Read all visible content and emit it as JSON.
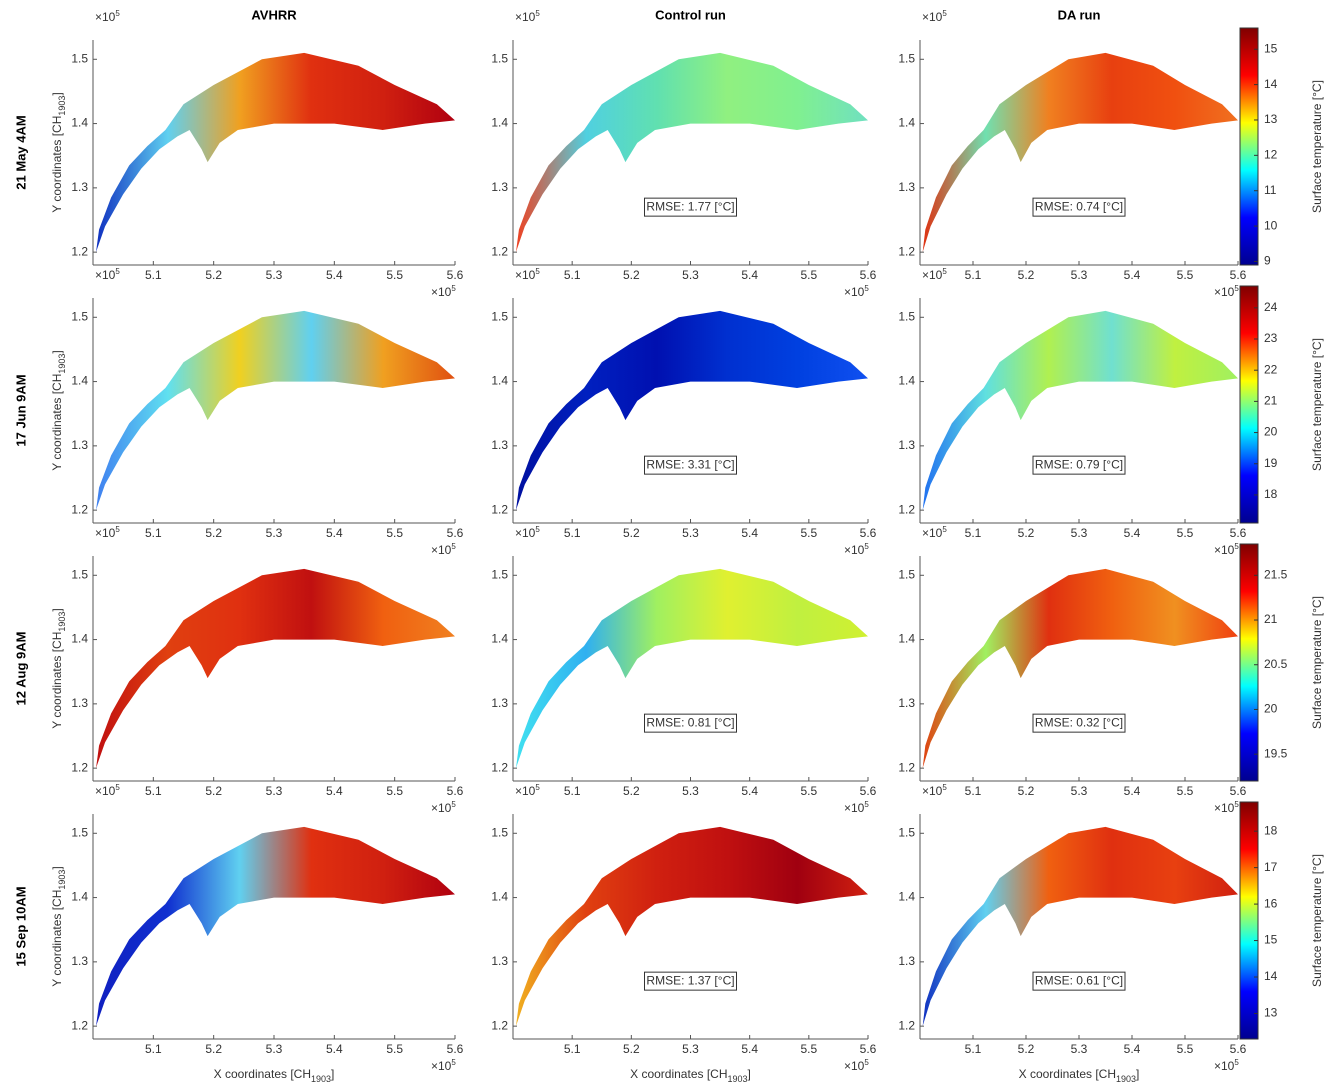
{
  "chart_data": {
    "type": "map-grid",
    "columns": [
      "AVHRR",
      "Control run",
      "DA run"
    ],
    "axes": {
      "xlabel": [
        "X coordinates [CH",
        "1903",
        "]"
      ],
      "ylabel": [
        "Y coordinates [CH",
        "1903",
        "]"
      ],
      "exponent": [
        "×10",
        "5"
      ],
      "xlim": [
        5.0,
        5.6
      ],
      "xticks": [
        5.1,
        5.2,
        5.3,
        5.4,
        5.5,
        5.6
      ],
      "ylim": [
        1.18,
        1.53
      ],
      "yticks": [
        1.2,
        1.3,
        1.4,
        1.5
      ]
    },
    "colormap": [
      "#00008f",
      "#0000ff",
      "#00ffff",
      "#ffff00",
      "#ff0000",
      "#800000"
    ],
    "rows": [
      {
        "label": "21 May 4AM",
        "colorbar": {
          "label": "Surface temperature [°C]",
          "lim": [
            8.9,
            15.6
          ],
          "ticks": [
            9,
            10,
            11,
            12,
            13,
            14,
            15
          ]
        },
        "panels": [
          {
            "colors": [
              "#1030c0",
              "#60d0f0",
              "#f0a020",
              "#e03010",
              "#d02010",
              "#b00010"
            ]
          },
          {
            "colors": [
              "#f04020",
              "#50d0e0",
              "#60e0b0",
              "#90f080",
              "#80f090",
              "#70e0c0"
            ],
            "rmse": "RMSE: 1.77 [°C]"
          },
          {
            "colors": [
              "#e03010",
              "#70e0b0",
              "#f08020",
              "#e84010",
              "#f05010",
              "#f07020"
            ],
            "rmse": "RMSE: 0.74 [°C]"
          }
        ]
      },
      {
        "label": "17 Jun 9AM",
        "colorbar": {
          "label": "Surface temperature [°C]",
          "lim": [
            17.1,
            24.7
          ],
          "ticks": [
            18,
            19,
            20,
            21,
            22,
            23,
            24
          ]
        },
        "panels": [
          {
            "colors": [
              "#4080f0",
              "#60e0f0",
              "#f0d020",
              "#60d0f0",
              "#f0a020",
              "#e05010"
            ]
          },
          {
            "colors": [
              "#0010a0",
              "#0020c0",
              "#0010b0",
              "#0030d0",
              "#0040e0",
              "#1050f0"
            ],
            "rmse": "RMSE: 3.31 [°C]"
          },
          {
            "colors": [
              "#2070f0",
              "#60e0e0",
              "#b0f050",
              "#70e0d0",
              "#c0f040",
              "#a0f060"
            ],
            "rmse": "RMSE: 0.79 [°C]"
          }
        ]
      },
      {
        "label": "12 Aug 9AM",
        "colorbar": {
          "label": "Surface temperature [°C]",
          "lim": [
            19.2,
            21.85
          ],
          "ticks": [
            19.5,
            20,
            20.5,
            21,
            21.5
          ]
        },
        "panels": [
          {
            "colors": [
              "#c01010",
              "#e04010",
              "#e03010",
              "#c01010",
              "#f06010",
              "#f08020"
            ]
          },
          {
            "colors": [
              "#40e0f0",
              "#30b0f0",
              "#a0f060",
              "#e0f030",
              "#c0f040",
              "#d0f030"
            ],
            "rmse": "RMSE: 0.81 [°C]"
          },
          {
            "colors": [
              "#e04010",
              "#a0f060",
              "#e03010",
              "#f06010",
              "#f09020",
              "#f04010"
            ],
            "rmse": "RMSE: 0.32 [°C]"
          }
        ]
      },
      {
        "label": "15 Sep 10AM",
        "colorbar": {
          "label": "Surface temperature [°C]",
          "lim": [
            12.3,
            18.8
          ],
          "ticks": [
            13,
            14,
            15,
            16,
            17,
            18
          ]
        },
        "panels": [
          {
            "colors": [
              "#1020c0",
              "#1030d0",
              "#60d0f0",
              "#e03010",
              "#d02010",
              "#b00010"
            ]
          },
          {
            "colors": [
              "#f0b020",
              "#e04010",
              "#d02010",
              "#c01010",
              "#a00010",
              "#d02010"
            ],
            "rmse": "RMSE: 1.37 [°C]"
          },
          {
            "colors": [
              "#1030c0",
              "#60d0f0",
              "#f06010",
              "#e03010",
              "#e84010",
              "#d02010"
            ],
            "rmse": "RMSE: 0.61 [°C]"
          }
        ]
      }
    ]
  }
}
